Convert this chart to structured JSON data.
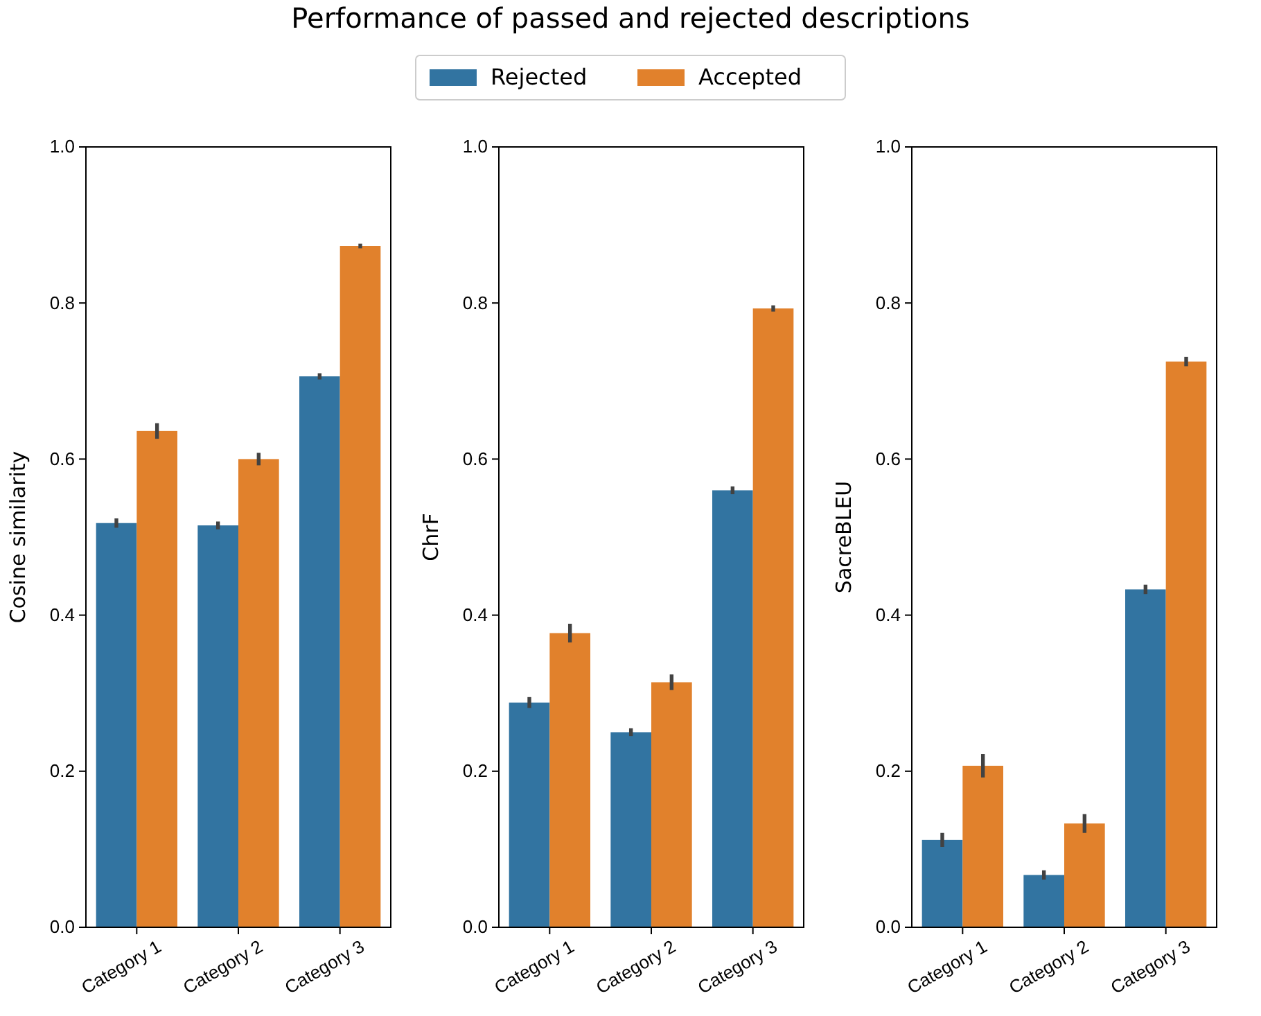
{
  "chart_data": [
    {
      "type": "bar",
      "title": "Performance of passed and rejected descriptions",
      "ylabel": "Cosine similarity",
      "categories": [
        "Category 1",
        "Category 2",
        "Category 3"
      ],
      "legend": "top",
      "ylim": [
        0,
        1
      ],
      "yticks": [
        {
          "value": 0,
          "label": "0.0"
        },
        {
          "value": 0.2,
          "label": "0.2"
        },
        {
          "value": 0.4,
          "label": "0.4"
        },
        {
          "value": 0.6,
          "label": "0.6"
        },
        {
          "value": 0.8,
          "label": "0.8"
        },
        {
          "value": 1,
          "label": "1.0"
        }
      ],
      "series": [
        {
          "name": "Rejected",
          "color": "#3274a1",
          "values": [
            0.518,
            0.515,
            0.706
          ],
          "errors": [
            0.006,
            0.005,
            0.004
          ]
        },
        {
          "name": "Accepted",
          "color": "#e1812c",
          "values": [
            0.636,
            0.6,
            0.873
          ],
          "errors": [
            0.01,
            0.008,
            0.003
          ]
        }
      ]
    },
    {
      "type": "bar",
      "ylabel": "ChrF",
      "categories": [
        "Category 1",
        "Category 2",
        "Category 3"
      ],
      "ylim": [
        0,
        1
      ],
      "yticks": [
        {
          "value": 0,
          "label": "0.0"
        },
        {
          "value": 0.2,
          "label": "0.2"
        },
        {
          "value": 0.4,
          "label": "0.4"
        },
        {
          "value": 0.6,
          "label": "0.6"
        },
        {
          "value": 0.8,
          "label": "0.8"
        },
        {
          "value": 1,
          "label": "1.0"
        }
      ],
      "series": [
        {
          "color": "#3274a1",
          "values": [
            0.288,
            0.25,
            0.56
          ],
          "errors": [
            0.007,
            0.005,
            0.005
          ]
        },
        {
          "color": "#e1812c",
          "values": [
            0.377,
            0.314,
            0.793
          ],
          "errors": [
            0.012,
            0.01,
            0.004
          ]
        }
      ]
    },
    {
      "type": "bar",
      "ylabel": "SacreBLEU",
      "categories": [
        "Category 1",
        "Category 2",
        "Category 3"
      ],
      "ylim": [
        0,
        1
      ],
      "yticks": [
        {
          "value": 0,
          "label": "0.0"
        },
        {
          "value": 0.2,
          "label": "0.2"
        },
        {
          "value": 0.4,
          "label": "0.4"
        },
        {
          "value": 0.6,
          "label": "0.6"
        },
        {
          "value": 0.8,
          "label": "0.8"
        },
        {
          "value": 1,
          "label": "1.0"
        }
      ],
      "series": [
        {
          "color": "#3274a1",
          "values": [
            0.112,
            0.067,
            0.433
          ],
          "errors": [
            0.009,
            0.006,
            0.006
          ]
        },
        {
          "color": "#e1812c",
          "values": [
            0.207,
            0.133,
            0.725
          ],
          "errors": [
            0.015,
            0.012,
            0.006
          ]
        }
      ]
    }
  ]
}
